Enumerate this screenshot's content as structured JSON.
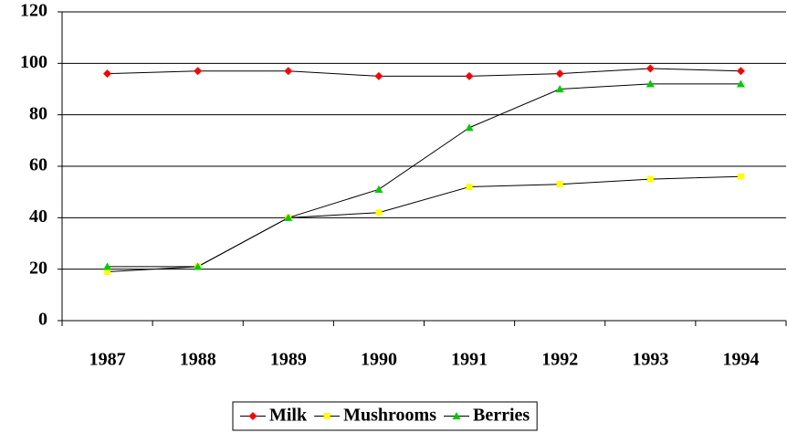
{
  "chart_data": {
    "type": "line",
    "categories": [
      "1987",
      "1988",
      "1989",
      "1990",
      "1991",
      "1992",
      "1993",
      "1994"
    ],
    "series": [
      {
        "name": "Milk",
        "color": "#ff0000",
        "marker": "diamond",
        "values": [
          96,
          97,
          97,
          95,
          95,
          96,
          98,
          97
        ]
      },
      {
        "name": "Mushrooms",
        "color": "#ffff00",
        "marker": "square",
        "values": [
          19,
          21,
          40,
          42,
          52,
          53,
          55,
          56
        ]
      },
      {
        "name": "Berries",
        "color": "#00cc00",
        "marker": "triangle",
        "values": [
          21,
          21,
          40,
          51,
          75,
          90,
          92,
          92
        ]
      }
    ],
    "line_color": "#000000",
    "ylim": [
      0,
      120
    ],
    "yticks": [
      0,
      20,
      40,
      60,
      80,
      100,
      120
    ],
    "grid": true,
    "legend": "bottom"
  }
}
